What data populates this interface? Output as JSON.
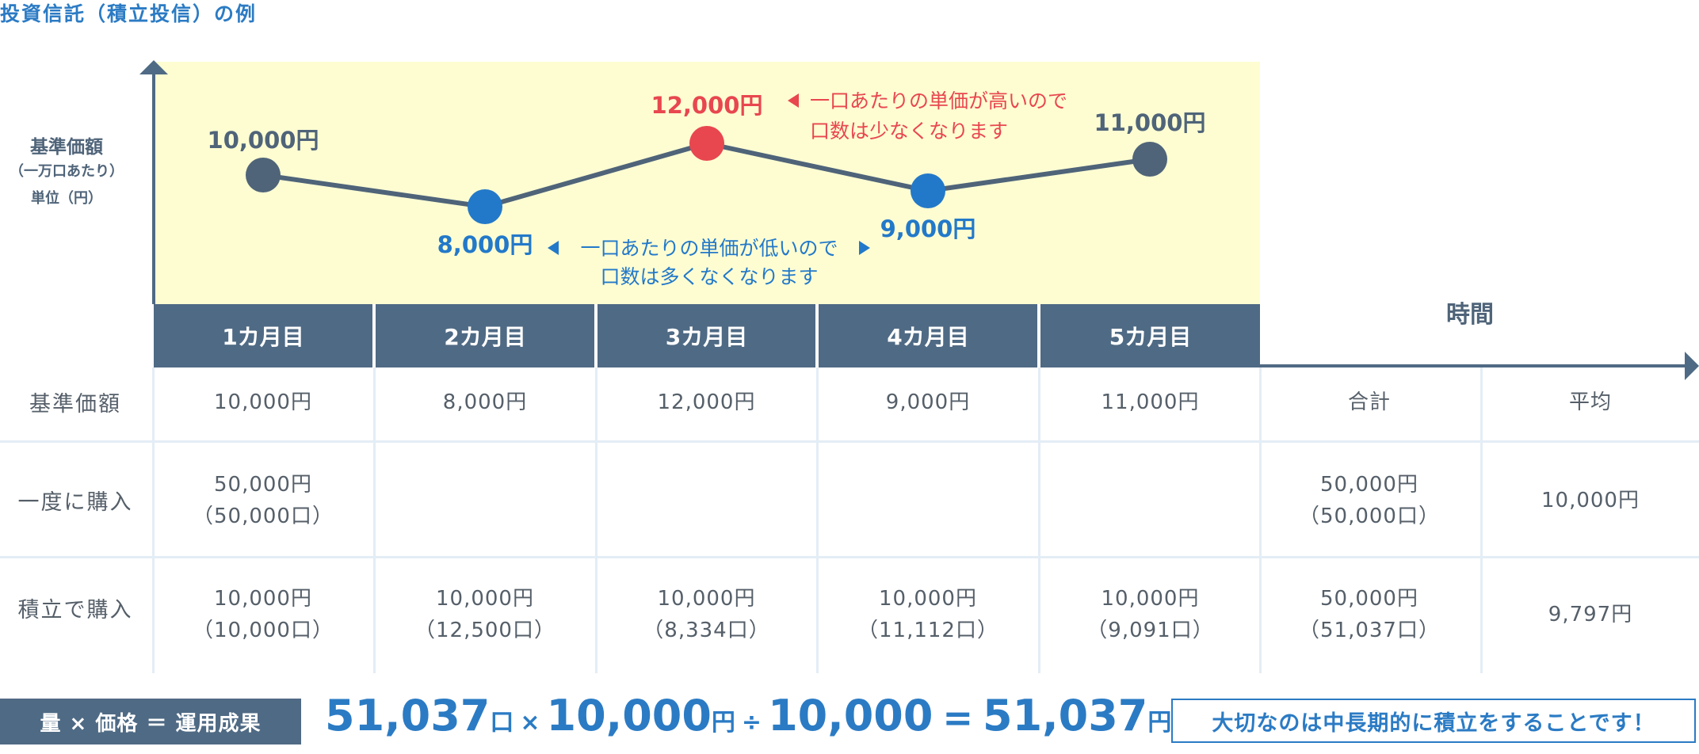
{
  "title": "投資信託（積立投信）の例",
  "y_axis": {
    "line1": "基準価額",
    "line2": "（一万口あたり）",
    "line3": "単位（円）"
  },
  "x_axis_label": "時間",
  "colors": {
    "title_blue": "#2b7bc4",
    "slate": "#4f6a84",
    "highlight_bg": "#fefdd2",
    "high_red": "#e8474f",
    "low_blue": "#2379c9"
  },
  "chart_data": {
    "type": "line",
    "categories": [
      "1カ月目",
      "2カ月目",
      "3カ月目",
      "4カ月目",
      "5カ月目"
    ],
    "values": [
      10000,
      8000,
      12000,
      9000,
      11000
    ],
    "point_labels": [
      "10,000円",
      "8,000円",
      "12,000円",
      "9,000円",
      "11,000円"
    ],
    "point_colors": [
      "#4f6479",
      "#2379c9",
      "#e8474f",
      "#2379c9",
      "#4f6479"
    ],
    "annotations": {
      "high_line1": "一口あたりの単価が高いので",
      "high_line2": "口数は少なくなります",
      "low_line1": "一口あたりの単価が低いので",
      "low_line2": "口数は多くなくなります"
    }
  },
  "table": {
    "summary_headers": [
      "合計",
      "平均"
    ],
    "rows": [
      {
        "label": "基準価額",
        "months": [
          "10,000円",
          "8,000円",
          "12,000円",
          "9,000円",
          "11,000円"
        ],
        "total": "",
        "average": ""
      },
      {
        "label": "一度に購入",
        "months": [
          [
            "50,000円",
            "（50,000口）"
          ],
          [
            "",
            ""
          ],
          [
            "",
            ""
          ],
          [
            "",
            ""
          ],
          [
            "",
            ""
          ]
        ],
        "total": [
          "50,000円",
          "（50,000口）"
        ],
        "average": "10,000円"
      },
      {
        "label": "積立で購入",
        "months": [
          [
            "10,000円",
            "（10,000口）"
          ],
          [
            "10,000円",
            "（12,500口）"
          ],
          [
            "10,000円",
            "（8,334口）"
          ],
          [
            "10,000円",
            "（11,112口）"
          ],
          [
            "10,000円",
            "（9,091口）"
          ]
        ],
        "total": [
          "50,000円",
          "（51,037口）"
        ],
        "average": "9,797円"
      }
    ]
  },
  "formula": {
    "badge": "量 × 価格 ＝ 運用成果",
    "units_value": "51,037",
    "units_unit": "口",
    "times": "×",
    "price_value": "10,000",
    "price_unit": "円",
    "divide": "÷",
    "divisor": "10,000",
    "equals": "=",
    "result_value": "51,037",
    "result_unit": "円"
  },
  "message": "大切なのは中長期的に積立をすることです！"
}
